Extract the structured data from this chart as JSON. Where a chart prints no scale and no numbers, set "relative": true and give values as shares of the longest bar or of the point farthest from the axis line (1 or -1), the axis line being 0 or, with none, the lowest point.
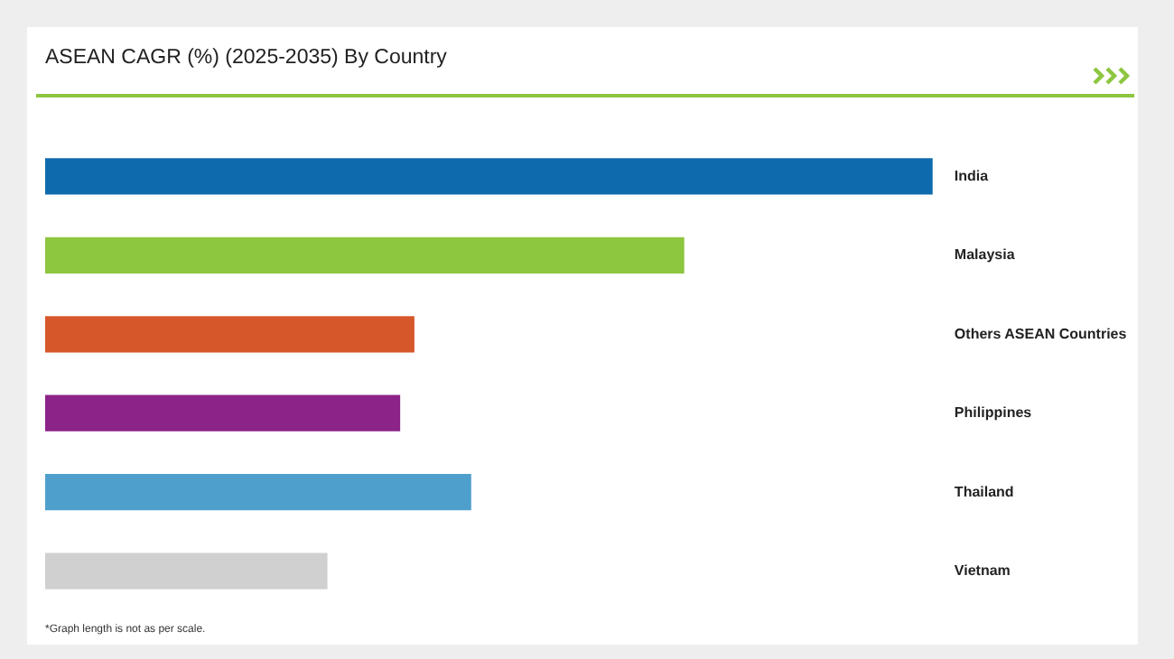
{
  "chart_data": {
    "type": "bar",
    "orientation": "horizontal",
    "relative": true,
    "title": "ASEAN CAGR (%) (2025-2035) By Country",
    "categories": [
      "India",
      "Malaysia",
      "Others ASEAN Countries",
      "Philippines",
      "Thailand",
      "Vietnam"
    ],
    "values": [
      1,
      0.72,
      0.416,
      0.4,
      0.48,
      0.318
    ],
    "colors": [
      "#0f6aad",
      "#8dc63f",
      "#d6572a",
      "#8c2389",
      "#4f9fcc",
      "#d0d0d0"
    ],
    "legend": false,
    "annotations": [
      "*Graph length is not as per scale."
    ]
  }
}
